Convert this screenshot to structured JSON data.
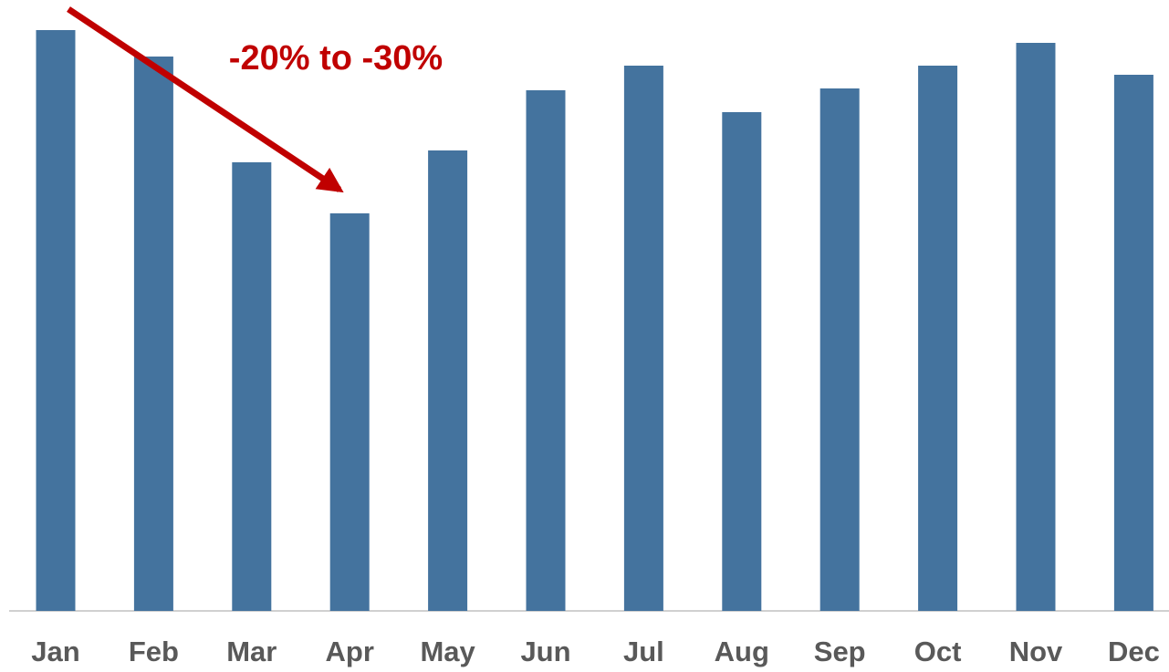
{
  "chart_data": {
    "type": "bar",
    "annotation": "-20% to -30%",
    "categories": [
      "Jan",
      "Feb",
      "Mar",
      "Apr",
      "May",
      "Jun",
      "Jul",
      "Aug",
      "Sep",
      "Oct",
      "Nov",
      "Dec"
    ],
    "values": [
      637,
      608,
      492,
      436,
      505,
      571,
      598,
      547,
      573,
      598,
      623,
      588
    ],
    "color": "#44739e",
    "ylim": [
      0,
      670
    ]
  }
}
